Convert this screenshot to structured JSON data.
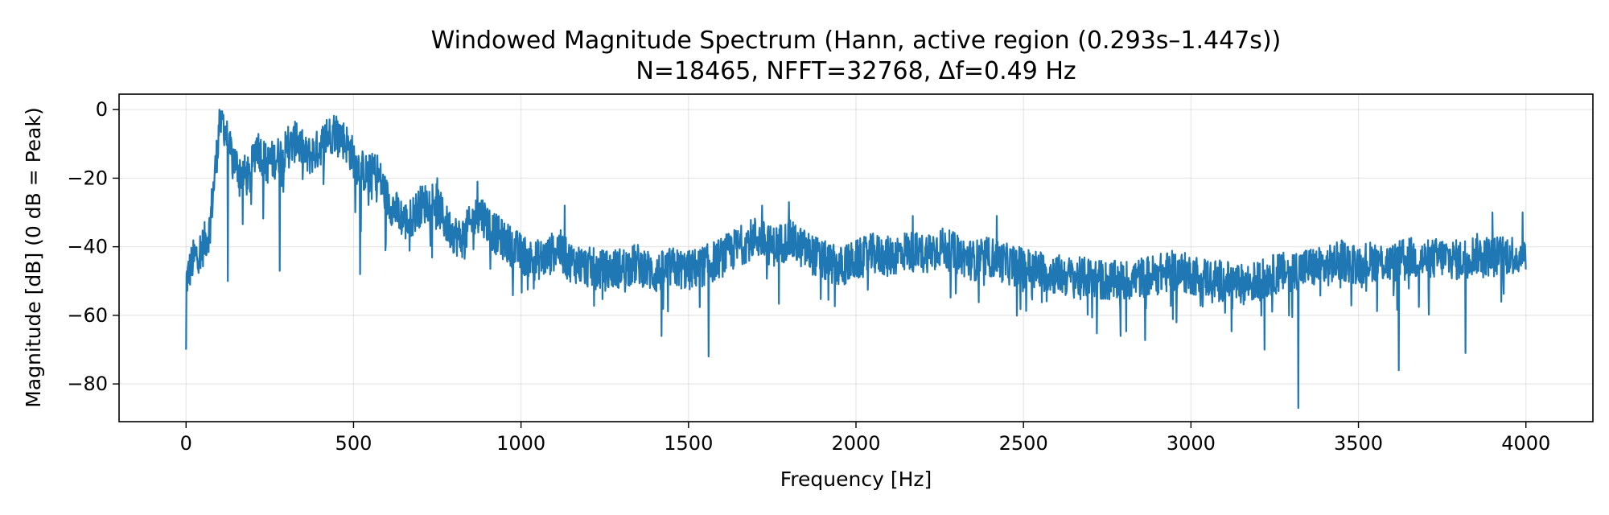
{
  "chart_data": {
    "type": "line",
    "title_line1": "Windowed Magnitude Spectrum (Hann, active region (0.293s–1.447s))",
    "title_line2": "N=18465, NFFT=32768, Δf=0.49 Hz",
    "xlabel": "Frequency [Hz]",
    "ylabel": "Magnitude [dB] (0 dB = Peak)",
    "xlim": [
      -200,
      4200
    ],
    "ylim": [
      -91,
      4.5
    ],
    "xticks": [
      0,
      500,
      1000,
      1500,
      2000,
      2500,
      3000,
      3500,
      4000
    ],
    "yticks": [
      0,
      -20,
      -40,
      -60,
      -80
    ],
    "xtick_labels": [
      "0",
      "500",
      "1000",
      "1500",
      "2000",
      "2500",
      "3000",
      "3500",
      "4000"
    ],
    "ytick_labels": [
      "0",
      "−20",
      "−40",
      "−60",
      "−80"
    ],
    "grid": true,
    "line_color": "#1f77b4",
    "series": [
      {
        "envelope": [
          [
            0,
            -50
          ],
          [
            20,
            -44
          ],
          [
            50,
            -40
          ],
          [
            70,
            -35
          ],
          [
            90,
            -15
          ],
          [
            100,
            -4
          ],
          [
            110,
            -3
          ],
          [
            130,
            -12
          ],
          [
            160,
            -18
          ],
          [
            190,
            -20
          ],
          [
            210,
            -10
          ],
          [
            240,
            -16
          ],
          [
            270,
            -14
          ],
          [
            300,
            -12
          ],
          [
            330,
            -9
          ],
          [
            360,
            -14
          ],
          [
            390,
            -12
          ],
          [
            420,
            -8
          ],
          [
            450,
            -6
          ],
          [
            480,
            -10
          ],
          [
            510,
            -16
          ],
          [
            540,
            -19
          ],
          [
            570,
            -18
          ],
          [
            600,
            -26
          ],
          [
            630,
            -30
          ],
          [
            660,
            -33
          ],
          [
            700,
            -28
          ],
          [
            740,
            -26
          ],
          [
            780,
            -34
          ],
          [
            820,
            -38
          ],
          [
            860,
            -32
          ],
          [
            880,
            -30
          ],
          [
            920,
            -36
          ],
          [
            960,
            -39
          ],
          [
            1000,
            -42
          ],
          [
            1040,
            -44
          ],
          [
            1080,
            -43
          ],
          [
            1110,
            -40
          ],
          [
            1140,
            -44
          ],
          [
            1200,
            -46
          ],
          [
            1250,
            -47
          ],
          [
            1300,
            -46
          ],
          [
            1350,
            -45
          ],
          [
            1400,
            -48
          ],
          [
            1450,
            -46
          ],
          [
            1500,
            -47
          ],
          [
            1560,
            -45
          ],
          [
            1600,
            -43
          ],
          [
            1650,
            -40
          ],
          [
            1700,
            -37
          ],
          [
            1750,
            -40
          ],
          [
            1800,
            -38
          ],
          [
            1850,
            -41
          ],
          [
            1900,
            -44
          ],
          [
            1950,
            -46
          ],
          [
            2000,
            -44
          ],
          [
            2050,
            -42
          ],
          [
            2100,
            -43
          ],
          [
            2150,
            -41
          ],
          [
            2200,
            -42
          ],
          [
            2250,
            -40
          ],
          [
            2300,
            -42
          ],
          [
            2350,
            -44
          ],
          [
            2400,
            -43
          ],
          [
            2450,
            -45
          ],
          [
            2500,
            -46
          ],
          [
            2550,
            -47
          ],
          [
            2600,
            -48
          ],
          [
            2650,
            -49
          ],
          [
            2700,
            -49
          ],
          [
            2750,
            -50
          ],
          [
            2800,
            -50
          ],
          [
            2850,
            -49
          ],
          [
            2900,
            -48
          ],
          [
            2950,
            -47
          ],
          [
            3000,
            -48
          ],
          [
            3050,
            -49
          ],
          [
            3100,
            -50
          ],
          [
            3150,
            -51
          ],
          [
            3200,
            -50
          ],
          [
            3250,
            -48
          ],
          [
            3300,
            -47
          ],
          [
            3350,
            -46
          ],
          [
            3400,
            -46
          ],
          [
            3450,
            -44
          ],
          [
            3500,
            -45
          ],
          [
            3550,
            -44
          ],
          [
            3600,
            -45
          ],
          [
            3650,
            -43
          ],
          [
            3700,
            -44
          ],
          [
            3750,
            -43
          ],
          [
            3800,
            -44
          ],
          [
            3850,
            -42
          ],
          [
            3900,
            -43
          ],
          [
            3950,
            -42
          ],
          [
            4000,
            -43
          ]
        ],
        "peaks": [
          [
            100,
            0
          ],
          [
            110,
            -2
          ],
          [
            305,
            -5
          ],
          [
            330,
            -4
          ],
          [
            420,
            -3
          ],
          [
            440,
            -4
          ],
          [
            560,
            -14
          ],
          [
            750,
            -20
          ],
          [
            870,
            -21
          ],
          [
            1130,
            -28
          ],
          [
            1720,
            -28
          ],
          [
            1800,
            -27
          ],
          [
            2170,
            -31
          ],
          [
            2420,
            -31
          ],
          [
            3900,
            -30
          ],
          [
            3990,
            -30
          ]
        ],
        "dips": [
          [
            0,
            -70
          ],
          [
            125,
            -50
          ],
          [
            280,
            -47
          ],
          [
            520,
            -48
          ],
          [
            1420,
            -66
          ],
          [
            1560,
            -72
          ],
          [
            2790,
            -66
          ],
          [
            3220,
            -70
          ],
          [
            3320,
            -87
          ],
          [
            3620,
            -76
          ],
          [
            3820,
            -71
          ]
        ]
      }
    ]
  }
}
